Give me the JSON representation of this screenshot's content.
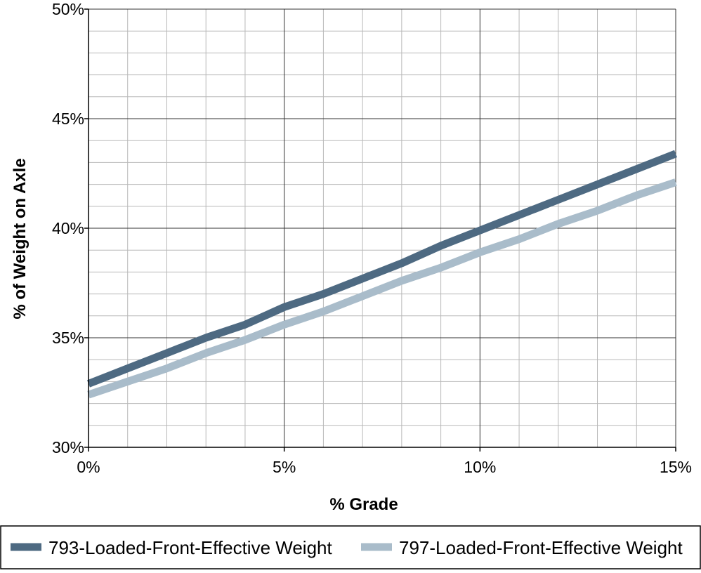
{
  "chart_data": {
    "type": "line",
    "title": "",
    "xlabel": "% Grade",
    "ylabel": "% of Weight on Axle",
    "xlim": [
      0,
      15
    ],
    "ylim": [
      30,
      50
    ],
    "x_ticks": [
      {
        "value": 0,
        "label": "0%"
      },
      {
        "value": 5,
        "label": "5%"
      },
      {
        "value": 10,
        "label": "10%"
      },
      {
        "value": 15,
        "label": "15%"
      }
    ],
    "y_ticks": [
      {
        "value": 30,
        "label": "30%"
      },
      {
        "value": 35,
        "label": "35%"
      },
      {
        "value": 40,
        "label": "40%"
      },
      {
        "value": 45,
        "label": "45%"
      },
      {
        "value": 50,
        "label": "50%"
      }
    ],
    "grid": {
      "major": true,
      "minor": true,
      "x_minor_step": 1,
      "y_minor_step": 1
    },
    "x": [
      0,
      1,
      2,
      3,
      4,
      5,
      6,
      7,
      8,
      9,
      10,
      11,
      12,
      13,
      14,
      15
    ],
    "series": [
      {
        "name": "793-Loaded-Front-Effective Weight",
        "color": "#4e6a82",
        "values": [
          32.9,
          33.6,
          34.3,
          35.0,
          35.6,
          36.4,
          37.0,
          37.7,
          38.4,
          39.2,
          39.9,
          40.6,
          41.3,
          42.0,
          42.7,
          43.4
        ]
      },
      {
        "name": "797-Loaded-Front-Effective Weight",
        "color": "#a9bcca",
        "values": [
          32.4,
          33.0,
          33.6,
          34.3,
          34.9,
          35.6,
          36.2,
          36.9,
          37.6,
          38.2,
          38.9,
          39.5,
          40.2,
          40.8,
          41.5,
          42.1
        ]
      }
    ],
    "legend_position": "bottom"
  }
}
